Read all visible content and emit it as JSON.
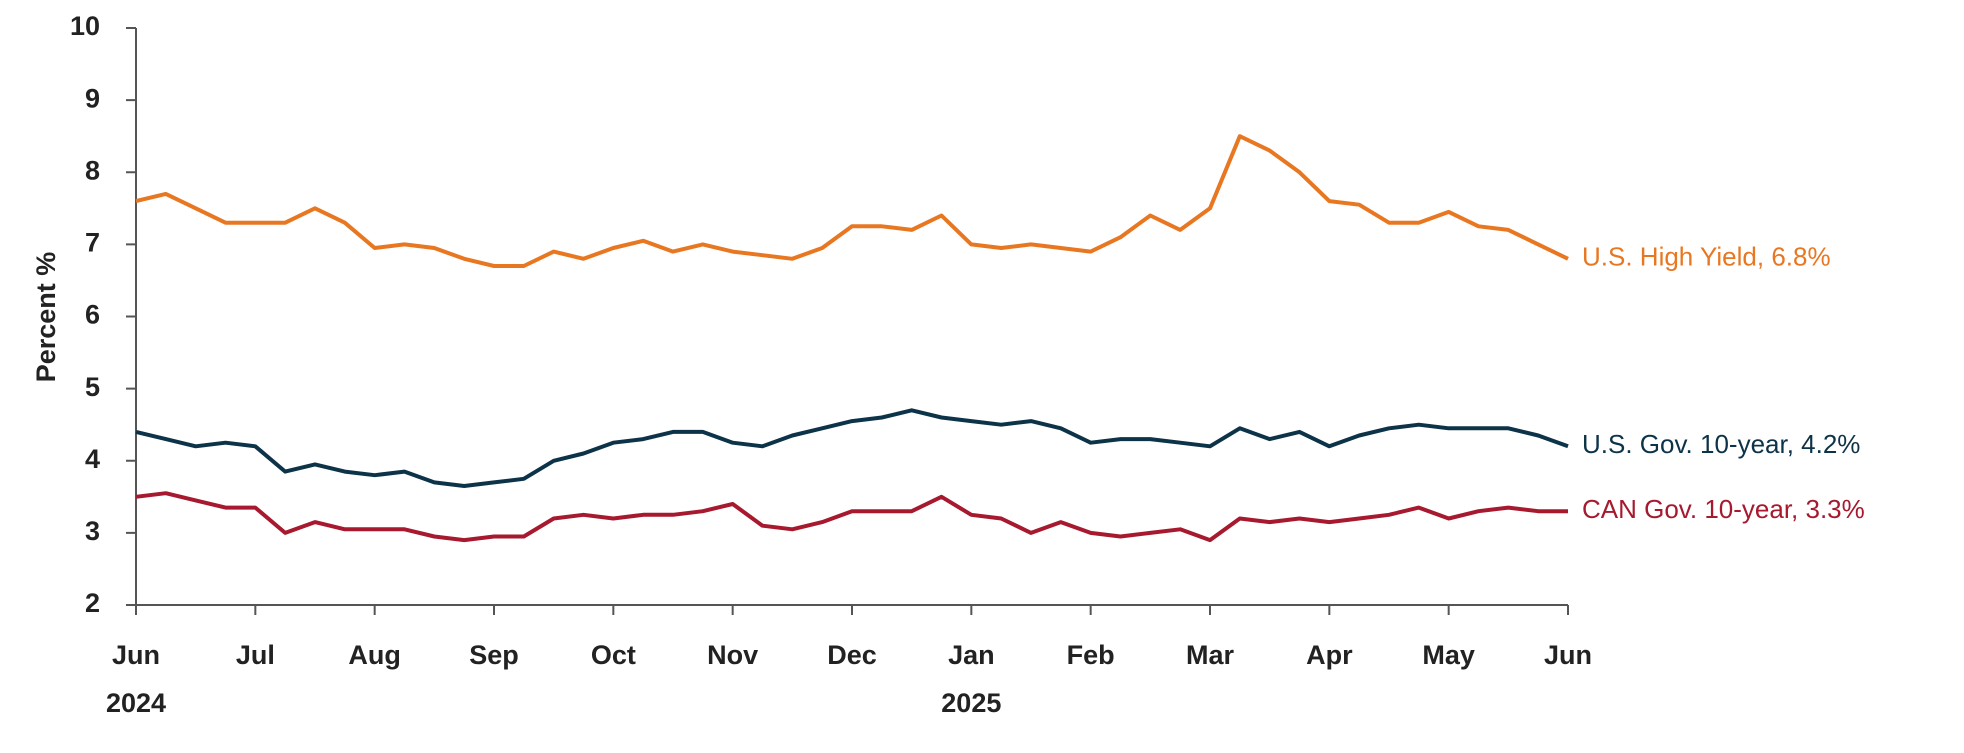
{
  "chart_data": {
    "type": "line",
    "y_label": "Percent  %",
    "categories": [
      "Jun 2024",
      null,
      null,
      null,
      "Jul",
      null,
      null,
      null,
      "Aug",
      null,
      null,
      null,
      "Sep",
      null,
      null,
      null,
      "Oct",
      null,
      null,
      null,
      "Nov",
      null,
      null,
      null,
      "Dec",
      null,
      null,
      null,
      "Jan 2025",
      null,
      null,
      null,
      "Feb",
      null,
      null,
      null,
      "Mar",
      null,
      null,
      null,
      "Apr",
      null,
      null,
      null,
      "May",
      null,
      null,
      null,
      "Jun"
    ],
    "series": [
      {
        "name": "U.S. High Yield, 6.8%",
        "color": "#e87722",
        "values": [
          7.6,
          7.7,
          7.5,
          7.3,
          7.3,
          7.3,
          7.5,
          7.3,
          6.95,
          7.0,
          6.95,
          6.8,
          6.7,
          6.7,
          6.9,
          6.8,
          6.95,
          7.05,
          6.9,
          7.0,
          6.9,
          6.85,
          6.8,
          6.95,
          7.25,
          7.25,
          7.2,
          7.4,
          7.0,
          6.95,
          7.0,
          6.95,
          6.9,
          7.1,
          7.4,
          7.2,
          7.5,
          8.5,
          8.3,
          8.0,
          7.6,
          7.55,
          7.3,
          7.3,
          7.45,
          7.25,
          7.2,
          7.0,
          6.8
        ]
      },
      {
        "name": "U.S. Gov. 10-year, 4.2%",
        "color": "#0d3349",
        "values": [
          4.4,
          4.3,
          4.2,
          4.25,
          4.2,
          3.85,
          3.95,
          3.85,
          3.8,
          3.85,
          3.7,
          3.65,
          3.7,
          3.75,
          4.0,
          4.1,
          4.25,
          4.3,
          4.4,
          4.4,
          4.25,
          4.2,
          4.35,
          4.45,
          4.55,
          4.6,
          4.7,
          4.6,
          4.55,
          4.5,
          4.55,
          4.45,
          4.25,
          4.3,
          4.3,
          4.25,
          4.2,
          4.45,
          4.3,
          4.4,
          4.2,
          4.35,
          4.45,
          4.5,
          4.45,
          4.45,
          4.45,
          4.35,
          4.2
        ]
      },
      {
        "name": "CAN Gov. 10-year, 3.3%",
        "color": "#a6192e",
        "values": [
          3.5,
          3.55,
          3.45,
          3.35,
          3.35,
          3.0,
          3.15,
          3.05,
          3.05,
          3.05,
          2.95,
          2.9,
          2.95,
          2.95,
          3.2,
          3.25,
          3.2,
          3.25,
          3.25,
          3.3,
          3.4,
          3.1,
          3.05,
          3.15,
          3.3,
          3.3,
          3.3,
          3.5,
          3.25,
          3.2,
          3.0,
          3.15,
          3.0,
          2.95,
          3.0,
          3.05,
          2.9,
          3.2,
          3.15,
          3.2,
          3.15,
          3.2,
          3.25,
          3.35,
          3.2,
          3.3,
          3.35,
          3.3,
          3.3
        ]
      }
    ],
    "ylim": [
      2,
      10
    ],
    "yticks": [
      2,
      3,
      4,
      5,
      6,
      7,
      8,
      9,
      10
    ],
    "grid": false
  }
}
